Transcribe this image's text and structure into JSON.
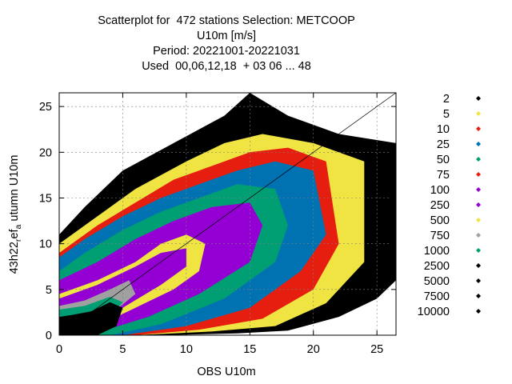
{
  "chart_data": {
    "type": "scatter",
    "title_lines": [
      "Scatterplot for  472 stations Selection: METCOOP",
      "U10m [m/s]",
      "Period: 20221001-20221031",
      "Used  00,06,12,18  + 03 06 ... 48"
    ],
    "xlabel": "OBS U10m",
    "ylabel": "43h22_ref_a utumn U10m",
    "xlim": [
      0,
      26.5
    ],
    "ylim": [
      0,
      26.5
    ],
    "xticks": [
      0,
      5,
      10,
      15,
      20,
      25
    ],
    "yticks": [
      0,
      5,
      10,
      15,
      20,
      25
    ],
    "grid": true,
    "diagonal": true,
    "legend_placement": "right",
    "density_bins": [
      {
        "label": "2",
        "color": "#000000"
      },
      {
        "label": "5",
        "color": "#f0e442"
      },
      {
        "label": "10",
        "color": "#e51e10"
      },
      {
        "label": "25",
        "color": "#0072b2"
      },
      {
        "label": "50",
        "color": "#009e73"
      },
      {
        "label": "75",
        "color": "#e51e10"
      },
      {
        "label": "100",
        "color": "#9400d3"
      },
      {
        "label": "250",
        "color": "#9400d3"
      },
      {
        "label": "500",
        "color": "#f0e442"
      },
      {
        "label": "750",
        "color": "#a0a0a0"
      },
      {
        "label": "1000",
        "color": "#009e73"
      },
      {
        "label": "2500",
        "color": "#000000"
      },
      {
        "label": "5000",
        "color": "#000000"
      },
      {
        "label": "7500",
        "color": "#000000"
      },
      {
        "label": "10000",
        "color": "#000000"
      }
    ]
  }
}
